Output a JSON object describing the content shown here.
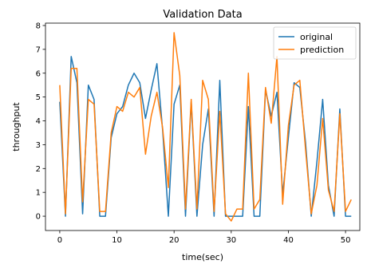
{
  "chart_data": {
    "type": "line",
    "title": "Validation Data",
    "xlabel": "time(sec)",
    "ylabel": "throughput",
    "xlim": [
      -2.5,
      52.5
    ],
    "ylim": [
      -0.6,
      8.1
    ],
    "xticks": [
      0,
      10,
      20,
      30,
      40,
      50
    ],
    "yticks": [
      0,
      1,
      2,
      3,
      4,
      5,
      6,
      7,
      8
    ],
    "grid": false,
    "legend_position": "top-right",
    "x": [
      0,
      1,
      2,
      3,
      4,
      5,
      6,
      7,
      8,
      9,
      10,
      11,
      12,
      13,
      14,
      15,
      16,
      17,
      18,
      19,
      20,
      21,
      22,
      23,
      24,
      25,
      26,
      27,
      28,
      29,
      30,
      31,
      32,
      33,
      34,
      35,
      36,
      37,
      38,
      39,
      40,
      41,
      42,
      43,
      44,
      45,
      46,
      47,
      48,
      49,
      50,
      51
    ],
    "series": [
      {
        "name": "original",
        "color": "#1f77b4",
        "values": [
          4.8,
          0.0,
          6.7,
          5.6,
          0.1,
          5.5,
          4.9,
          0.0,
          0.0,
          3.3,
          4.3,
          4.6,
          5.5,
          6.0,
          5.6,
          4.1,
          5.3,
          6.4,
          3.6,
          0.0,
          4.7,
          5.5,
          0.0,
          4.8,
          0.0,
          3.0,
          4.5,
          0.0,
          5.7,
          0.0,
          0.0,
          0.0,
          0.0,
          4.6,
          0.0,
          0.0,
          5.3,
          4.2,
          5.2,
          0.9,
          3.3,
          5.6,
          5.4,
          3.1,
          0.0,
          2.3,
          4.9,
          1.3,
          0.0,
          4.5,
          0.0,
          0.0
        ]
      },
      {
        "name": "prediction",
        "color": "#ff7f0e",
        "values": [
          5.5,
          0.1,
          6.2,
          6.2,
          0.6,
          4.9,
          4.7,
          0.2,
          0.2,
          3.5,
          4.6,
          4.4,
          5.2,
          5.0,
          5.4,
          2.6,
          4.2,
          5.2,
          3.7,
          1.2,
          7.7,
          5.9,
          0.3,
          4.9,
          0.3,
          5.7,
          4.9,
          0.2,
          4.4,
          0.1,
          -0.2,
          0.3,
          0.3,
          6.0,
          0.3,
          0.7,
          5.4,
          3.9,
          6.7,
          0.5,
          3.8,
          5.5,
          5.7,
          2.8,
          0.1,
          1.3,
          4.1,
          1.1,
          0.2,
          4.3,
          0.2,
          0.7
        ]
      }
    ]
  }
}
